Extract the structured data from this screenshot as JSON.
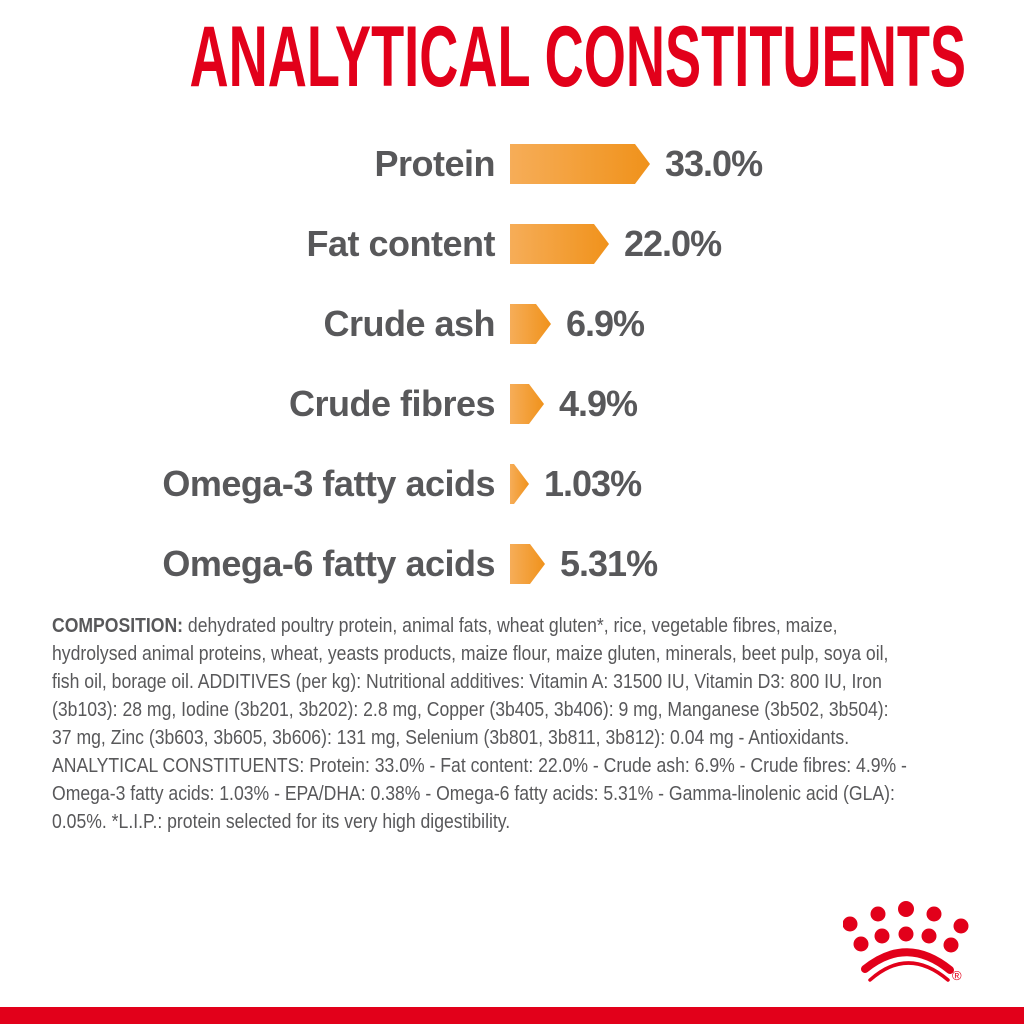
{
  "title": "ANALYTICAL CONSTITUENTS",
  "colors": {
    "brand_red": "#e2001a",
    "text_gray": "#58585a",
    "bar_orange_light": "#f6ad58",
    "bar_orange_dark": "#f0921b"
  },
  "chart_data": {
    "type": "bar",
    "orientation": "horizontal",
    "title": "ANALYTICAL CONSTITUENTS",
    "unit": "%",
    "legend": "none",
    "grid": false,
    "categories": [
      "Protein",
      "Fat content",
      "Crude ash",
      "Crude fibres",
      "Omega-3 fatty acids",
      "Omega-6 fatty acids"
    ],
    "values": [
      33.0,
      22.0,
      6.9,
      4.9,
      1.03,
      5.31
    ],
    "value_labels": [
      "33.0%",
      "22.0%",
      "6.9%",
      "4.9%",
      "1.03%",
      "5.31%"
    ]
  },
  "composition": {
    "label": "COMPOSITION:",
    "line1_rest": "dehydrated poultry protein, animal fats, wheat gluten*, rice, vegetable fibres, maize,",
    "lines": [
      "hydrolysed animal proteins, wheat, yeasts products, maize flour, maize gluten, minerals, beet pulp, soya oil,",
      "fish oil, borage oil. ADDITIVES (per kg): Nutritional additives: Vitamin A: 31500 IU, Vitamin D3: 800 IU, Iron",
      "(3b103): 28 mg, Iodine (3b201, 3b202): 2.8 mg, Copper (3b405, 3b406): 9 mg, Manganese (3b502, 3b504):",
      "37 mg, Zinc (3b603, 3b605, 3b606): 131 mg, Selenium (3b801, 3b811, 3b812): 0.04 mg - Antioxidants.",
      "ANALYTICAL CONSTITUENTS: Protein: 33.0% - Fat content: 22.0% - Crude ash: 6.9% - Crude fibres: 4.9% -",
      "Omega-3 fatty acids: 1.03% - EPA/DHA: 0.38% - Omega-6 fatty acids: 5.31% - Gamma-linolenic acid (GLA):",
      "0.05%. *L.I.P.: protein selected for its very high digestibility."
    ]
  },
  "footer": {
    "brand_logo": "royal-canin-crown",
    "registered_mark": "®"
  }
}
